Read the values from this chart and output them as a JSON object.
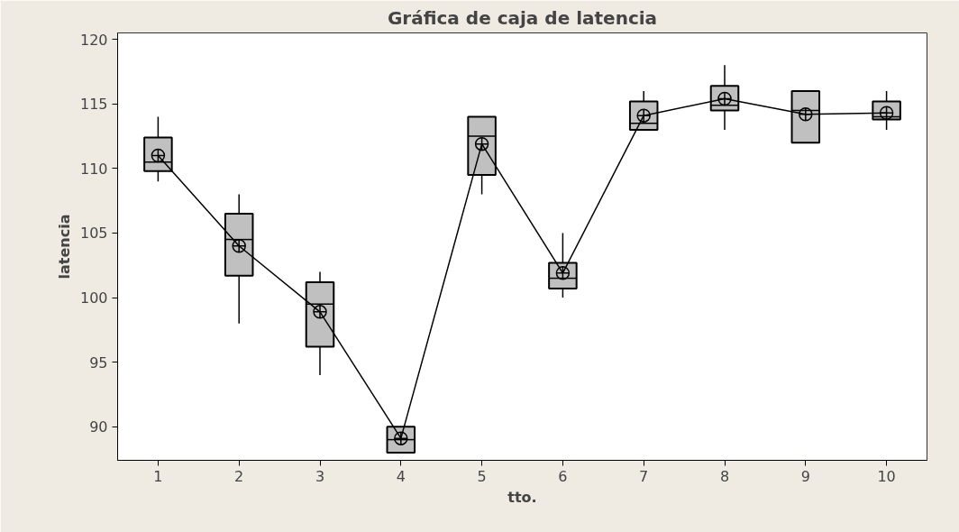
{
  "chart_data": {
    "type": "box",
    "title": "Gráfica de caja de latencia",
    "xlabel": "tto.",
    "ylabel": "latencia",
    "categories": [
      "1",
      "2",
      "3",
      "4",
      "5",
      "6",
      "7",
      "8",
      "9",
      "10"
    ],
    "ylim": [
      87.4,
      120.5
    ],
    "yticks": [
      90,
      95,
      100,
      105,
      110,
      115,
      120
    ],
    "grid": false,
    "boxes": [
      {
        "low": 109,
        "q1": 109.8,
        "median": 110.5,
        "q3": 112.4,
        "high": 114
      },
      {
        "low": 98,
        "q1": 101.7,
        "median": 104.5,
        "q3": 106.5,
        "high": 108
      },
      {
        "low": 94,
        "q1": 96.2,
        "median": 99.5,
        "q3": 101.2,
        "high": 102
      },
      {
        "low": 88,
        "q1": 88,
        "median": 89,
        "q3": 90,
        "high": 90
      },
      {
        "low": 108,
        "q1": 109.5,
        "median": 112.5,
        "q3": 114,
        "high": 114
      },
      {
        "low": 100,
        "q1": 100.7,
        "median": 101.5,
        "q3": 102.7,
        "high": 105
      },
      {
        "low": 113,
        "q1": 113,
        "median": 113.5,
        "q3": 115.2,
        "high": 116
      },
      {
        "low": 113,
        "q1": 114.5,
        "median": 114.9,
        "q3": 116.4,
        "high": 118
      },
      {
        "low": 112,
        "q1": 112,
        "median": 114.5,
        "q3": 116,
        "high": 116
      },
      {
        "low": 113,
        "q1": 113.8,
        "median": 114,
        "q3": 115.2,
        "high": 116
      }
    ],
    "colors": [
      "#c0c0c0",
      "#c0c0c0",
      "#c0c0c0",
      "#c0c0c0",
      "#c0c0c0",
      "#c0c0c0",
      "#c0c0c0",
      "#c0c0c0",
      "#c0c0c0",
      "#c0c0c0"
    ],
    "series": [
      {
        "type": "line",
        "color": "#000000",
        "marker": "circle",
        "values": [
          111.0,
          104.0,
          98.9,
          89.1,
          111.9,
          101.9,
          114.1,
          115.4,
          114.2,
          114.3
        ]
      }
    ]
  }
}
